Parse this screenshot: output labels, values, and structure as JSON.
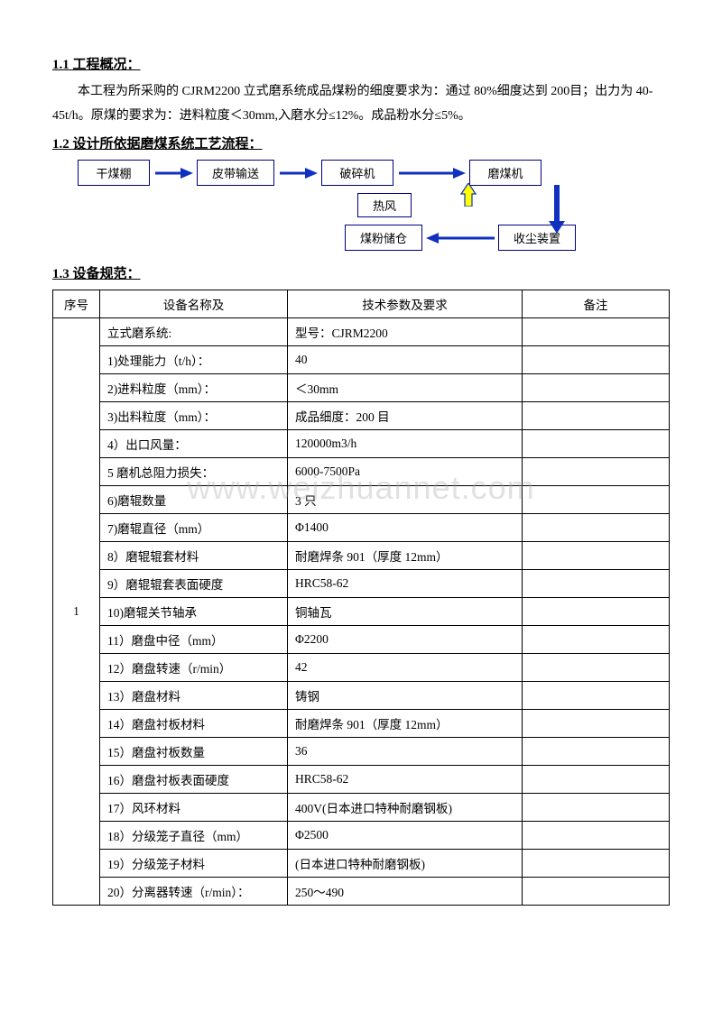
{
  "watermark": "www.weizhuannet.com",
  "sections": {
    "s1_1": {
      "heading": "1.1 工程概况：",
      "body": "本工程为所采购的 CJRM2200 立式磨系统成品煤粉的细度要求为：通过 80%细度达到 200目；出力为 40-45t/h。原煤的要求为：进料粒度＜30mm,入磨水分≤12%。成品粉水分≤5%。"
    },
    "s1_2": {
      "heading": "1.2 设计所依据磨煤系统工艺流程："
    },
    "s1_3": {
      "heading": "1.3 设备规范："
    }
  },
  "flowchart": {
    "nodes": {
      "n1": "干煤棚",
      "n2": "皮带输送",
      "n3": "破碎机",
      "n4": "磨煤机",
      "n5": "热风",
      "n6": "煤粉储仓",
      "n7": "收尘装置"
    },
    "arrow_color": "#1030c0",
    "arrow_color_yellow_fill": "#ffff00",
    "box_border": "#000080"
  },
  "table": {
    "headers": {
      "num": "序号",
      "name": "设备名称及",
      "param": "技术参数及要求",
      "note": "备注"
    },
    "group_num": "1",
    "rows": [
      {
        "name": "立式磨系统:",
        "param": "型号：CJRM2200"
      },
      {
        "name": "1)处理能力（t/h）：",
        "param": "40"
      },
      {
        "name": "2)进料粒度（mm）：",
        "param": "＜30mm"
      },
      {
        "name": "3)出料粒度（mm）：",
        "param": "成品细度：200 目"
      },
      {
        "name": "4）出口风量：",
        "param": "120000m3/h"
      },
      {
        "name": "5 磨机总阻力损失：",
        "param": "6000-7500Pa"
      },
      {
        "name": "6)磨辊数量",
        "param": "3 只"
      },
      {
        "name": "7)磨辊直径（mm）",
        "param": "Φ1400"
      },
      {
        "name": "8）磨辊辊套材料",
        "param": "耐磨焊条 901（厚度 12mm）"
      },
      {
        "name": "9）磨辊辊套表面硬度",
        "param": "HRC58-62"
      },
      {
        "name": "10)磨辊关节轴承",
        "param": "铜轴瓦"
      },
      {
        "name": "11）磨盘中径（mm）",
        "param": "Φ2200"
      },
      {
        "name": "12）磨盘转速（r/min）",
        "param": "42"
      },
      {
        "name": "13）磨盘材料",
        "param": "铸钢"
      },
      {
        "name": "14）磨盘衬板材料",
        "param": "耐磨焊条 901（厚度 12mm）"
      },
      {
        "name": "15）磨盘衬板数量",
        "param": "36"
      },
      {
        "name": "16）磨盘衬板表面硬度",
        "param": "HRC58-62"
      },
      {
        "name": "17）风环材料",
        "param": "400V(日本进口特种耐磨钢板)"
      },
      {
        "name": "18）分级笼子直径（mm）",
        "param": "Φ2500"
      },
      {
        "name": "19）分级笼子材料",
        "param": "(日本进口特种耐磨钢板)"
      },
      {
        "name": "20）分离器转速（r/min）：",
        "param": "250～490"
      }
    ]
  }
}
